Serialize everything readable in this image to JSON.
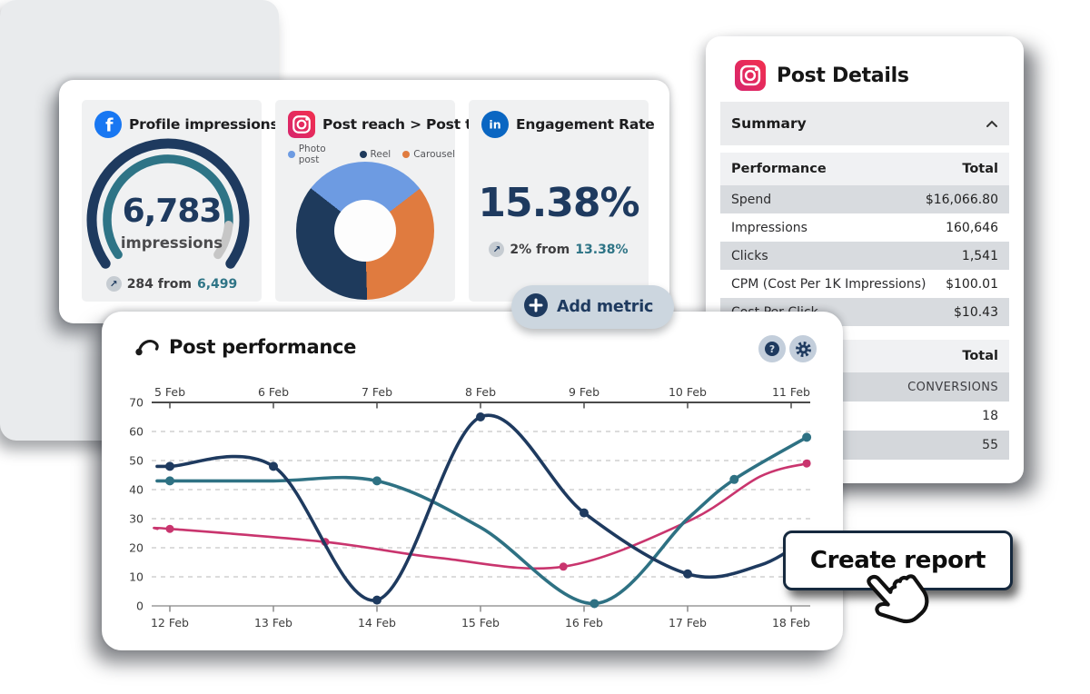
{
  "colors": {
    "navy": "#1e3a5f",
    "teal": "#2e7183",
    "pink": "#c9356e",
    "orange": "#e07b3f",
    "light_blue": "#6d9be2",
    "gauge_remainder": "#c6c6c6",
    "facebook": "#1877f2",
    "linkedin": "#0a66c2",
    "instagram_a": "#f2304e",
    "instagram_b": "#d6256e"
  },
  "metrics_card": {
    "widgets": [
      {
        "icon": "facebook-icon",
        "title": "Profile impressions",
        "status_dot_color": "#2e7486",
        "value": "6,783",
        "value_label": "impressions",
        "delta_arrow": "↗",
        "delta_text": "284 from",
        "delta_reference": "6,499"
      },
      {
        "icon": "instagram-icon",
        "title": "Post reach > Post type",
        "legend": [
          {
            "label": "Photo post",
            "color": "#6d9be2"
          },
          {
            "label": "Reel",
            "color": "#1e3a5c"
          },
          {
            "label": "Carousel",
            "color": "#e07b3f"
          }
        ]
      },
      {
        "icon": "linkedin-icon",
        "title": "Engagement Rate",
        "value": "15.38%",
        "delta_arrow": "↗",
        "delta_text": "2% from",
        "delta_reference": "13.38%"
      }
    ],
    "add_metric_label": "Add metric"
  },
  "post_details": {
    "icon": "instagram-icon",
    "title": "Post Details",
    "summary_header": "Summary",
    "collapse_icon": "chevron-up",
    "performance_table": {
      "columns": [
        "Performance",
        "Total"
      ],
      "rows": [
        [
          "Spend",
          "$16,066.80"
        ],
        [
          "Impressions",
          "160,646"
        ],
        [
          "Clicks",
          "1,541"
        ],
        [
          "CPM (Cost Per 1K Impressions)",
          "$100.01"
        ],
        [
          "Cost Per Click",
          "$10.43"
        ]
      ]
    },
    "conversions_table": {
      "header": "Total",
      "rows": [
        "CONVERSIONS",
        "18",
        "55"
      ]
    }
  },
  "post_performance": {
    "title": "Post performance"
  },
  "create_report": {
    "label": "Create report"
  },
  "chart_data": [
    {
      "type": "gauge",
      "title": "Profile impressions",
      "value": 6783,
      "unit": "impressions",
      "delta": 284,
      "previous": 6499,
      "fraction_filled": 0.88,
      "track_color": "#1e3a5f",
      "fill_color": "#2e7486",
      "rest_color": "#c6c6c6"
    },
    {
      "type": "pie",
      "donut": true,
      "title": "Post reach > Post type",
      "start_angle": -52,
      "categories": [
        "Photo post",
        "Reel",
        "Carousel"
      ],
      "values": [
        29,
        36,
        35
      ],
      "colors": [
        "#6d9be2",
        "#1e3a5c",
        "#e07b3f"
      ],
      "render_order": [
        0,
        2,
        1
      ]
    },
    {
      "type": "line",
      "title": "Post performance",
      "x_top": [
        "5 Feb",
        "6 Feb",
        "7 Feb",
        "8 Feb",
        "9 Feb",
        "10 Feb",
        "11 Feb"
      ],
      "x_bottom": [
        "12 Feb",
        "13 Feb",
        "14 Feb",
        "15 Feb",
        "16 Feb",
        "17 Feb",
        "18 Feb"
      ],
      "ylim": [
        0,
        70
      ],
      "yticks": [
        0,
        10,
        20,
        30,
        40,
        50,
        60,
        70
      ],
      "grid": "dashed",
      "series": [
        {
          "name": "series-pink",
          "color": "#c9356e",
          "width": 2.6,
          "dot_r": 4.5,
          "points": [
            [
              -0.12,
              26.5,
              0
            ],
            [
              0,
              26.5,
              1
            ],
            [
              1.5,
              22,
              1
            ],
            [
              2.6,
              16.5,
              0
            ],
            [
              3.8,
              13.5,
              1
            ],
            [
              5,
              29,
              0
            ],
            [
              5.7,
              44.5,
              0
            ],
            [
              6.15,
              49,
              1
            ]
          ]
        },
        {
          "name": "series-teal",
          "color": "#2e7183",
          "width": 3.6,
          "dot_r": 5,
          "points": [
            [
              -0.12,
              43,
              0
            ],
            [
              0,
              43,
              1
            ],
            [
              1,
              43,
              0
            ],
            [
              2,
              43,
              1
            ],
            [
              3,
              27,
              0
            ],
            [
              4.1,
              0.8,
              1
            ],
            [
              5,
              30,
              0
            ],
            [
              5.45,
              43.5,
              1
            ],
            [
              6.15,
              58,
              1
            ]
          ]
        },
        {
          "name": "series-navy",
          "color": "#1e3a5f",
          "width": 3.6,
          "dot_r": 5,
          "points": [
            [
              -0.12,
              48,
              0
            ],
            [
              0,
              48,
              1
            ],
            [
              1,
              48,
              1
            ],
            [
              2,
              2,
              1
            ],
            [
              3,
              65,
              1
            ],
            [
              4,
              32,
              1
            ],
            [
              5,
              11,
              1
            ],
            [
              5.7,
              14,
              0
            ],
            [
              6.18,
              24,
              0
            ]
          ]
        }
      ]
    }
  ]
}
